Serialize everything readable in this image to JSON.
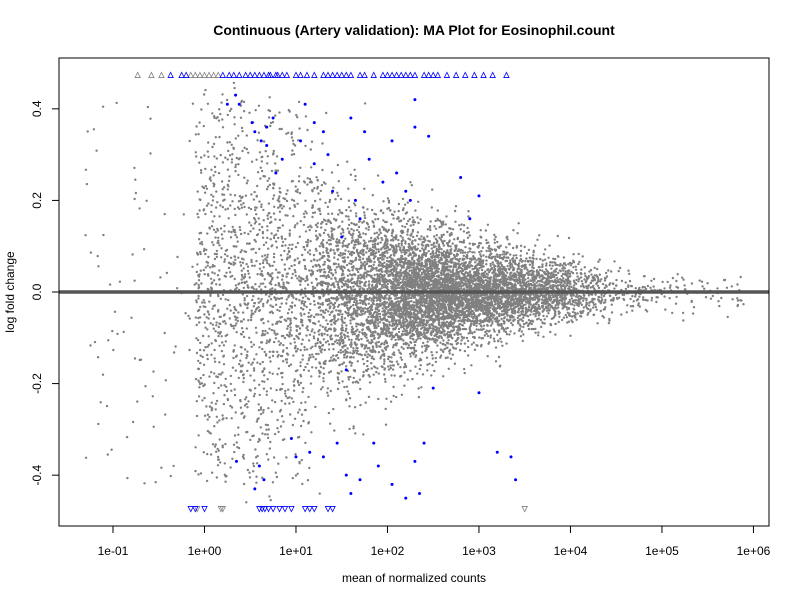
{
  "chart_data": {
    "type": "scatter",
    "title": "Continuous (Artery validation): MA Plot for Eosinophil.count",
    "xlabel": "mean of normalized counts",
    "ylabel": "log fold change",
    "xscale": "log10",
    "xlim_log10": [
      -1.59,
      6.17
    ],
    "ylim": [
      -0.511,
      0.511
    ],
    "x_ticks": [
      {
        "log10": -1,
        "label": "1e-01"
      },
      {
        "log10": 0,
        "label": "1e+00"
      },
      {
        "log10": 1,
        "label": "1e+01"
      },
      {
        "log10": 2,
        "label": "1e+02"
      },
      {
        "log10": 3,
        "label": "1e+03"
      },
      {
        "log10": 4,
        "label": "1e+04"
      },
      {
        "log10": 5,
        "label": "1e+05"
      },
      {
        "log10": 6,
        "label": "1e+06"
      }
    ],
    "y_ticks": [
      {
        "value": -0.4,
        "label": "-0.4"
      },
      {
        "value": -0.2,
        "label": "-0.2"
      },
      {
        "value": 0,
        "label": "0.0"
      },
      {
        "value": 0.2,
        "label": "0.2"
      },
      {
        "value": 0.4,
        "label": "0.4"
      }
    ],
    "reference_line": 0,
    "colors": {
      "nonsignificant": "#808080",
      "significant": "#0000ff",
      "refline": "#555555"
    },
    "nonsignificant_cloud": {
      "n": 9000,
      "seed": 12345,
      "note": "approximate distribution of grey genes",
      "center_log10": 2.8,
      "sd_log10": 0.9
    },
    "significant_points": [
      [
        0.34,
        0.43
      ],
      [
        0.38,
        0.41
      ],
      [
        0.25,
        0.41
      ],
      [
        0.52,
        0.37
      ],
      [
        0.55,
        0.35
      ],
      [
        0.68,
        0.36
      ],
      [
        0.75,
        0.38
      ],
      [
        0.62,
        0.33
      ],
      [
        0.68,
        0.32
      ],
      [
        0.85,
        0.29
      ],
      [
        0.78,
        0.26
      ],
      [
        1.1,
        0.41
      ],
      [
        1.2,
        0.37
      ],
      [
        1.3,
        0.35
      ],
      [
        1.05,
        0.33
      ],
      [
        1.35,
        0.3
      ],
      [
        1.2,
        0.28
      ],
      [
        1.4,
        0.22
      ],
      [
        1.6,
        0.38
      ],
      [
        1.75,
        0.35
      ],
      [
        1.8,
        0.29
      ],
      [
        1.65,
        0.2
      ],
      [
        1.95,
        0.24
      ],
      [
        2.1,
        0.26
      ],
      [
        2.05,
        0.33
      ],
      [
        2.3,
        0.36
      ],
      [
        2.3,
        0.42
      ],
      [
        2.2,
        0.22
      ],
      [
        2.45,
        0.34
      ],
      [
        2.25,
        0.2
      ],
      [
        2.8,
        0.25
      ],
      [
        3.0,
        0.21
      ],
      [
        2.9,
        0.16
      ],
      [
        1.5,
        0.12
      ],
      [
        1.7,
        0.16
      ],
      [
        0.35,
        -0.37
      ],
      [
        0.6,
        -0.38
      ],
      [
        0.55,
        -0.43
      ],
      [
        0.65,
        -0.41
      ],
      [
        0.95,
        -0.32
      ],
      [
        1.0,
        -0.36
      ],
      [
        1.15,
        -0.35
      ],
      [
        1.3,
        -0.36
      ],
      [
        1.45,
        -0.33
      ],
      [
        1.55,
        -0.4
      ],
      [
        1.6,
        -0.44
      ],
      [
        1.7,
        -0.41
      ],
      [
        1.55,
        -0.17
      ],
      [
        1.85,
        -0.33
      ],
      [
        1.9,
        -0.38
      ],
      [
        2.05,
        -0.42
      ],
      [
        2.2,
        -0.45
      ],
      [
        2.3,
        -0.37
      ],
      [
        2.35,
        -0.44
      ],
      [
        2.4,
        -0.33
      ],
      [
        2.5,
        -0.21
      ],
      [
        3.0,
        -0.22
      ],
      [
        3.2,
        -0.35
      ],
      [
        3.35,
        -0.36
      ],
      [
        3.4,
        -0.41
      ]
    ],
    "clipped_up": {
      "grey_log10": [
        -0.73,
        -0.58,
        -0.47,
        -0.15,
        -0.1,
        -0.05,
        0.0,
        0.05,
        0.1,
        0.15
      ],
      "blue_log10": [
        -0.37,
        -0.25,
        -0.2,
        0.2,
        0.27,
        0.32,
        0.38,
        0.45,
        0.5,
        0.55,
        0.6,
        0.65,
        0.7,
        0.72,
        0.78,
        0.8,
        0.85,
        0.9,
        1.0,
        1.05,
        1.12,
        1.2,
        1.3,
        1.35,
        1.4,
        1.45,
        1.5,
        1.55,
        1.6,
        1.7,
        1.75,
        1.85,
        1.95,
        2.0,
        2.05,
        2.1,
        2.15,
        2.2,
        2.25,
        2.3,
        2.4,
        2.45,
        2.5,
        2.55,
        2.65,
        2.75,
        2.85,
        2.95,
        3.05,
        3.15,
        3.3
      ]
    },
    "clipped_down": {
      "grey_log10": [
        -0.08,
        0.18,
        0.2,
        3.5
      ],
      "blue_log10": [
        -0.15,
        -0.1,
        0.0,
        0.6,
        0.63,
        0.66,
        0.7,
        0.75,
        0.82,
        0.88,
        0.95,
        1.1,
        1.15,
        1.2,
        1.35,
        1.4
      ]
    },
    "clip_value": 0.474,
    "grid": false,
    "legend": "none"
  }
}
